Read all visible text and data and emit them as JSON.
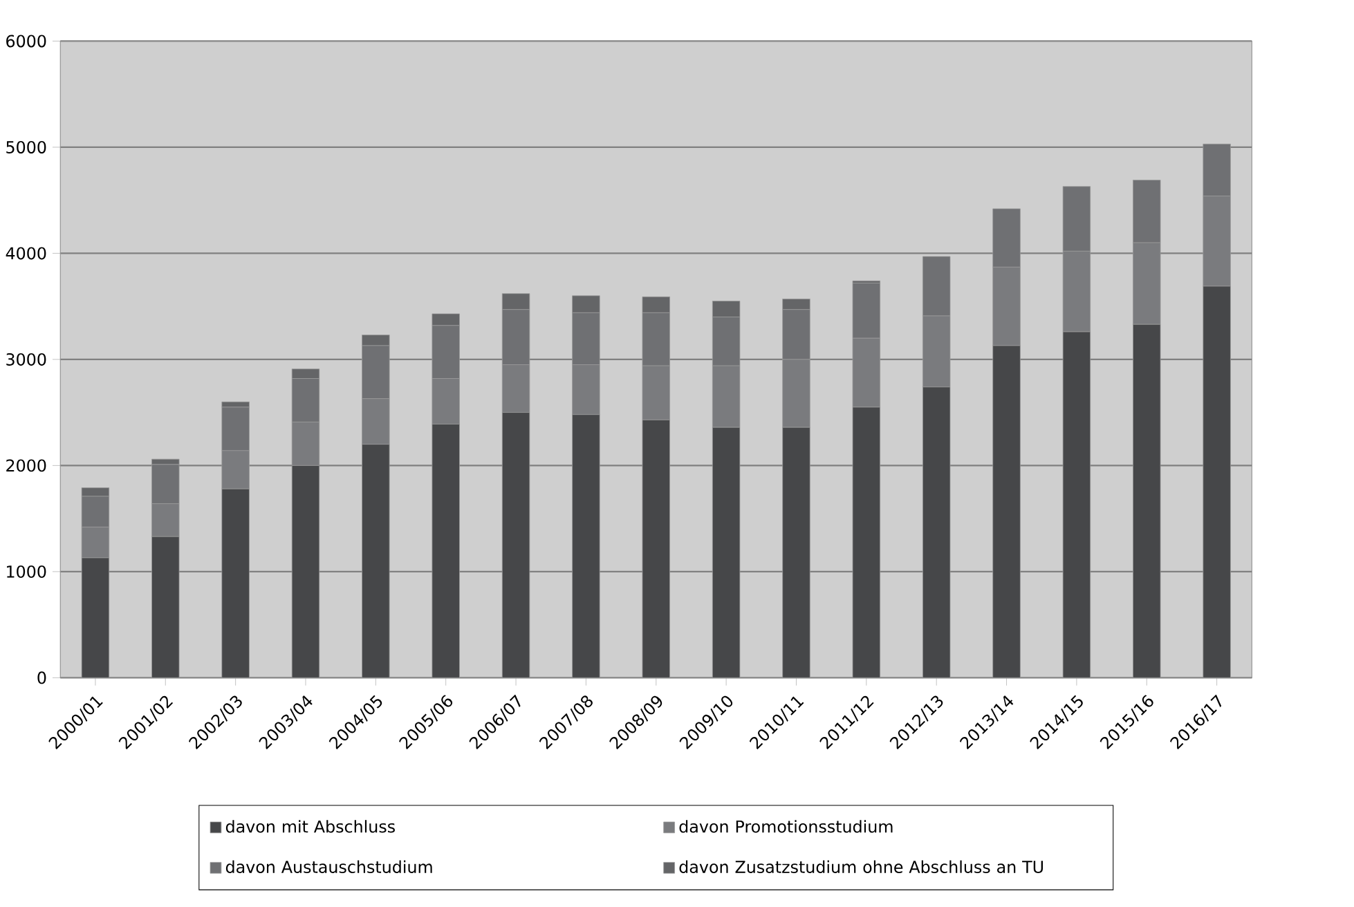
{
  "chart_data": {
    "type": "bar",
    "stacked": true,
    "categories": [
      "2000/01",
      "2001/02",
      "2002/03",
      "2003/04",
      "2004/05",
      "2005/06",
      "2006/07",
      "2007/08",
      "2008/09",
      "2009/10",
      "2010/11",
      "2011/12",
      "2012/13",
      "2013/14",
      "2014/15",
      "2015/16",
      "2016/17"
    ],
    "series": [
      {
        "name": "davon mit Abschluss",
        "color": "#464749",
        "values": [
          1130,
          1330,
          1780,
          2000,
          2200,
          2390,
          2500,
          2480,
          2430,
          2360,
          2360,
          2550,
          2740,
          3130,
          3260,
          3330,
          3690
        ]
      },
      {
        "name": "davon Promotionsstudium",
        "color": "#7a7b7e",
        "values": [
          290,
          310,
          360,
          410,
          430,
          430,
          450,
          470,
          510,
          580,
          640,
          650,
          670,
          740,
          760,
          770,
          850
        ]
      },
      {
        "name": "davon Austauschstudium",
        "color": "#6f7073",
        "values": [
          290,
          370,
          410,
          410,
          500,
          500,
          520,
          490,
          500,
          460,
          470,
          520,
          560,
          550,
          610,
          590,
          490
        ]
      },
      {
        "name": "davon Zusatzstudium ohne Abschluss an TU",
        "color": "#646567",
        "values": [
          80,
          50,
          50,
          90,
          100,
          110,
          150,
          160,
          150,
          150,
          100,
          20,
          0,
          0,
          0,
          0,
          0
        ]
      }
    ],
    "ylim": [
      0,
      6000
    ],
    "yticks": [
      0,
      1000,
      2000,
      3000,
      4000,
      5000,
      6000
    ],
    "grid": "y",
    "legend": "bottom"
  }
}
